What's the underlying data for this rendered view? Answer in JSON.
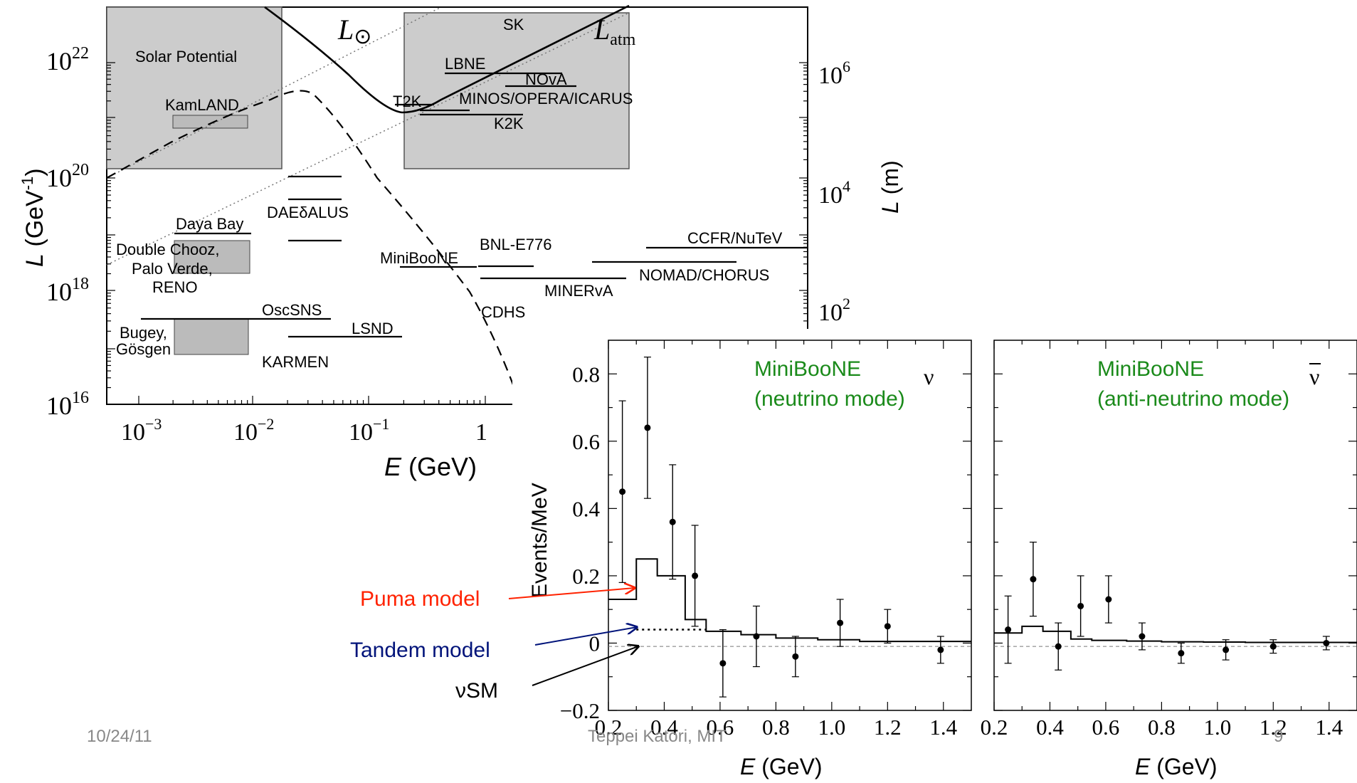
{
  "chart_data": [
    {
      "type": "diagram",
      "x_axis": {
        "label_italic": "E",
        "label": "(GeV)",
        "ticks": [
          "10",
          "10",
          "10",
          "1"
        ],
        "tick_exps": [
          "−3",
          "−2",
          "−1",
          ""
        ],
        "scale": "log"
      },
      "y_axis_left": {
        "label_italic": "L",
        "label": "(GeV",
        "label_sup": "-1",
        "label_close": ")",
        "ticks": [
          "10",
          "10",
          "10",
          "10"
        ],
        "tick_exps": [
          "22",
          "20",
          "18",
          "16"
        ],
        "scale": "log"
      },
      "y_axis_right": {
        "label_italic": "L",
        "label": "(m)",
        "ticks": [
          "10",
          "10",
          "10"
        ],
        "tick_exps": [
          "6",
          "4",
          "2"
        ]
      },
      "curves": {
        "solar_label": "L",
        "solar_sub": "⊙",
        "atm_label": "L",
        "atm_sub": "atm"
      },
      "regions": [
        {
          "label": "Solar Potential"
        },
        {
          "label": "SK"
        }
      ],
      "experiments": [
        "KamLAND",
        "LBNE",
        "NOvA",
        "T2K",
        "MINOS/OPERA/ICARUS",
        "K2K",
        "DAEδALUS",
        "Daya Bay",
        "Double Chooz,",
        "Palo Verde,",
        "RENO",
        "BNL-E776",
        "CCFR/NuTeV",
        "MiniBooNE",
        "NOMAD/CHORUS",
        "MINERvA",
        "CDHS",
        "OscSNS",
        "Bugey,",
        "Gösgen",
        "LSND",
        "KARMEN"
      ]
    },
    {
      "type": "histogram",
      "mode_title": "MiniBooNE",
      "mode_subtitle": "(neutrino mode)",
      "symbol": "ν",
      "ylabel": "Events/MeV",
      "xlabel_italic": "E",
      "xlabel": "(GeV)",
      "ylim": [
        -0.2,
        0.9
      ],
      "xlim": [
        0.2,
        1.5
      ],
      "y_ticks": [
        "0.8",
        "0.6",
        "0.4",
        "0.2",
        "0",
        "−0.2"
      ],
      "x_ticks": [
        "0.2",
        "0.4",
        "0.6",
        "0.8",
        "1.0",
        "1.2",
        "1.4"
      ],
      "bin_edges": [
        0.2,
        0.3,
        0.375,
        0.475,
        0.55,
        0.675,
        0.8,
        0.95,
        1.1,
        1.3,
        1.5
      ],
      "model_values": [
        0.13,
        0.25,
        0.2,
        0.07,
        0.035,
        0.025,
        0.015,
        0.01,
        0.005,
        0.005
      ],
      "points": [
        {
          "x": 0.25,
          "y": 0.45,
          "err": 0.27
        },
        {
          "x": 0.34,
          "y": 0.64,
          "err": 0.21
        },
        {
          "x": 0.43,
          "y": 0.36,
          "err": 0.17
        },
        {
          "x": 0.51,
          "y": 0.2,
          "err": 0.15
        },
        {
          "x": 0.61,
          "y": -0.06,
          "err": 0.1
        },
        {
          "x": 0.73,
          "y": 0.02,
          "err": 0.09
        },
        {
          "x": 0.87,
          "y": -0.04,
          "err": 0.06
        },
        {
          "x": 1.03,
          "y": 0.06,
          "err": 0.07
        },
        {
          "x": 1.2,
          "y": 0.05,
          "err": 0.05
        },
        {
          "x": 1.39,
          "y": -0.02,
          "err": 0.04
        }
      ],
      "tandem_level": 0.04,
      "sm_level": -0.01
    },
    {
      "type": "histogram",
      "mode_title": "MiniBooNE",
      "mode_subtitle": "(anti-neutrino mode)",
      "symbol": "ν",
      "xlabel_italic": "E",
      "xlabel": "(GeV)",
      "ylim": [
        -0.2,
        0.9
      ],
      "xlim": [
        0.2,
        1.5
      ],
      "x_ticks": [
        "0.2",
        "0.4",
        "0.6",
        "0.8",
        "1.0",
        "1.2",
        "1.4"
      ],
      "bin_edges": [
        0.2,
        0.3,
        0.375,
        0.475,
        0.55,
        0.675,
        0.8,
        0.95,
        1.1,
        1.3,
        1.5
      ],
      "model_values": [
        0.03,
        0.05,
        0.035,
        0.012,
        0.008,
        0.006,
        0.004,
        0.003,
        0.002,
        0.002
      ],
      "points": [
        {
          "x": 0.25,
          "y": 0.04,
          "err": 0.1
        },
        {
          "x": 0.34,
          "y": 0.19,
          "err": 0.11
        },
        {
          "x": 0.43,
          "y": -0.01,
          "err": 0.07
        },
        {
          "x": 0.51,
          "y": 0.11,
          "err": 0.09
        },
        {
          "x": 0.61,
          "y": 0.13,
          "err": 0.07
        },
        {
          "x": 0.73,
          "y": 0.02,
          "err": 0.04
        },
        {
          "x": 0.87,
          "y": -0.03,
          "err": 0.03
        },
        {
          "x": 1.03,
          "y": -0.02,
          "err": 0.03
        },
        {
          "x": 1.2,
          "y": -0.01,
          "err": 0.02
        },
        {
          "x": 1.39,
          "y": 0.0,
          "err": 0.02
        }
      ]
    }
  ],
  "annotations": {
    "puma": "Puma model",
    "tandem": "Tandem model",
    "sm": "νSM"
  },
  "colors": {
    "puma": "#ff2200",
    "tandem": "#00137a",
    "sm": "#000000",
    "mode_title": "#1a8a1a",
    "region": "#cccccc"
  },
  "footer": {
    "date": "10/24/11",
    "author": "Teppei Katori, MIT",
    "page": "9"
  }
}
